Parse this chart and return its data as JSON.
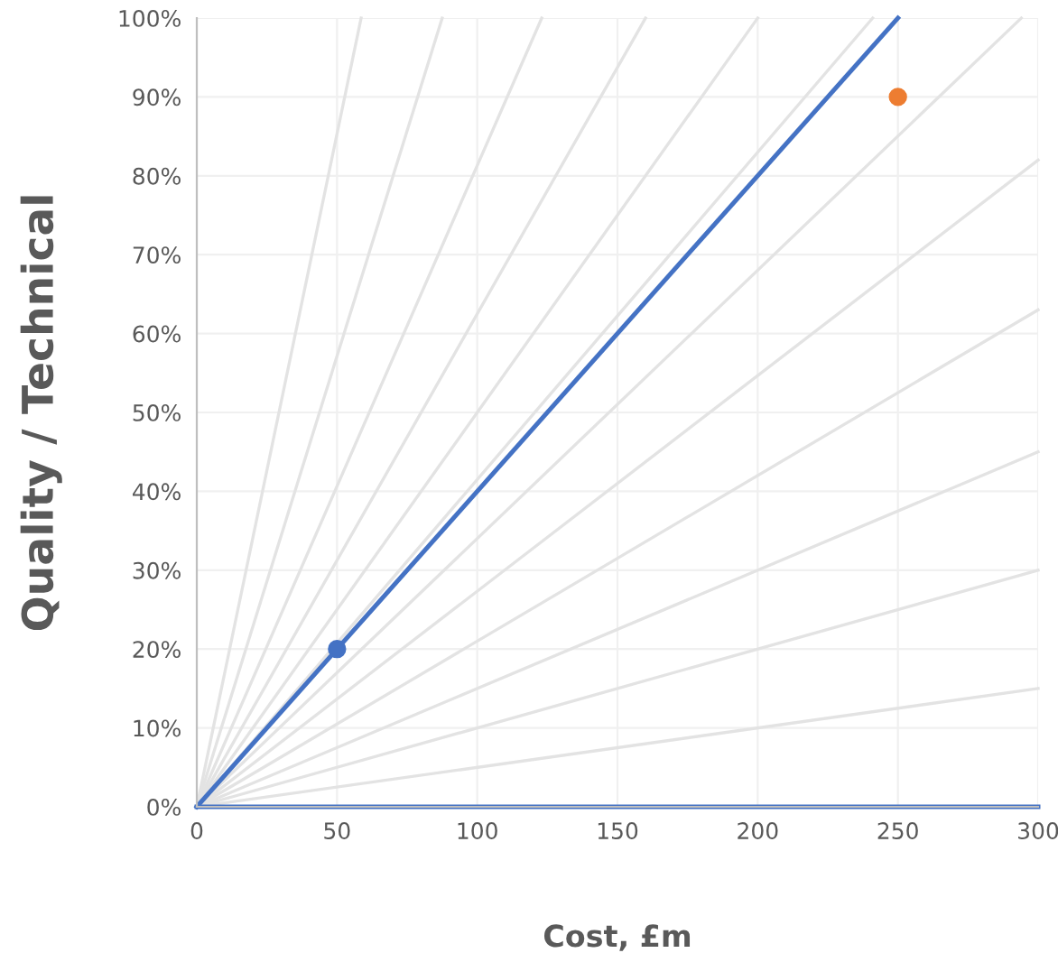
{
  "chart_data": {
    "type": "line",
    "xlabel": "Cost, £m",
    "ylabel": "Quality / Technical",
    "xlim": [
      0,
      300
    ],
    "xticks": [
      0,
      50,
      100,
      150,
      200,
      250,
      300
    ],
    "ylim": [
      0,
      100
    ],
    "yticks": [
      {
        "value": 0,
        "label": "0%"
      },
      {
        "value": 10,
        "label": "10%"
      },
      {
        "value": 20,
        "label": "20%"
      },
      {
        "value": 30,
        "label": "30%"
      },
      {
        "value": 40,
        "label": "40%"
      },
      {
        "value": 50,
        "label": "50%"
      },
      {
        "value": 60,
        "label": "60%"
      },
      {
        "value": 70,
        "label": "70%"
      },
      {
        "value": 80,
        "label": "80%"
      },
      {
        "value": 90,
        "label": "90%"
      },
      {
        "value": 100,
        "label": "100%"
      }
    ],
    "grid": true,
    "legend": false,
    "series": [
      {
        "color": "#e3e3e3",
        "x": [
          0,
          58.6
        ],
        "values": [
          0,
          100
        ]
      },
      {
        "color": "#e3e3e3",
        "x": [
          0,
          87.5
        ],
        "values": [
          0,
          100
        ]
      },
      {
        "color": "#e3e3e3",
        "x": [
          0,
          123
        ],
        "values": [
          0,
          100
        ]
      },
      {
        "color": "#e3e3e3",
        "x": [
          0,
          160
        ],
        "values": [
          0,
          100
        ]
      },
      {
        "color": "#e3e3e3",
        "x": [
          0,
          200
        ],
        "values": [
          0,
          100
        ]
      },
      {
        "color": "#e3e3e3",
        "x": [
          0,
          241
        ],
        "values": [
          0,
          100
        ]
      },
      {
        "color": "#e3e3e3",
        "x": [
          0,
          294
        ],
        "values": [
          0,
          100
        ]
      },
      {
        "color": "#e3e3e3",
        "x": [
          0,
          300
        ],
        "values": [
          0,
          82
        ]
      },
      {
        "color": "#e3e3e3",
        "x": [
          0,
          300
        ],
        "values": [
          0,
          63
        ]
      },
      {
        "color": "#e3e3e3",
        "x": [
          0,
          300
        ],
        "values": [
          0,
          45
        ]
      },
      {
        "color": "#e3e3e3",
        "x": [
          0,
          300
        ],
        "values": [
          0,
          30
        ]
      },
      {
        "color": "#e3e3e3",
        "x": [
          0,
          300
        ],
        "values": [
          0,
          15
        ]
      },
      {
        "color": "#4472c4",
        "x": [
          0,
          300
        ],
        "values": [
          0,
          0
        ]
      },
      {
        "color": "#4472c4",
        "x": [
          0,
          250
        ],
        "values": [
          0,
          100
        ]
      },
      {
        "type": "scatter",
        "color": "#4472c4",
        "marker": "circle",
        "x": [
          50
        ],
        "values": [
          20
        ]
      },
      {
        "type": "scatter",
        "color": "#ed7d31",
        "marker": "circle",
        "x": [
          250
        ],
        "values": [
          90
        ]
      }
    ]
  }
}
